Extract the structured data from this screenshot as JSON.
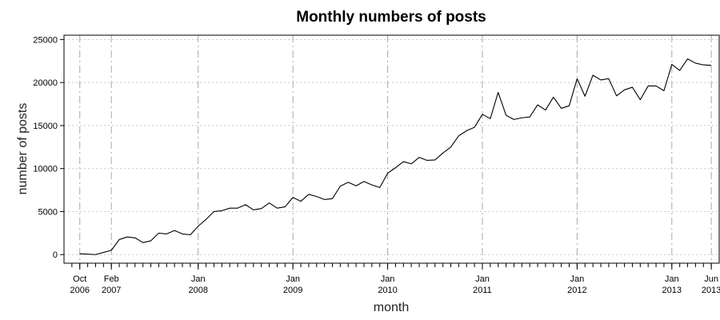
{
  "chart_data": {
    "type": "line",
    "title": "Monthly numbers of posts",
    "xlabel": "month",
    "ylabel": "number of posts",
    "ylim": [
      -1000,
      25500
    ],
    "y_ticks": [
      0,
      5000,
      10000,
      15000,
      20000,
      25000
    ],
    "x_range": [
      "2006-08",
      "2013-07"
    ],
    "x_tick_labels": [
      {
        "date": "2006-10",
        "line1": "Oct",
        "line2": "2006"
      },
      {
        "date": "2007-02",
        "line1": "Feb",
        "line2": "2007"
      },
      {
        "date": "2008-01",
        "line1": "Jan",
        "line2": "2008"
      },
      {
        "date": "2009-01",
        "line1": "Jan",
        "line2": "2009"
      },
      {
        "date": "2010-01",
        "line1": "Jan",
        "line2": "2010"
      },
      {
        "date": "2011-01",
        "line1": "Jan",
        "line2": "2011"
      },
      {
        "date": "2012-01",
        "line1": "Jan",
        "line2": "2012"
      },
      {
        "date": "2013-01",
        "line1": "Jan",
        "line2": "2013"
      },
      {
        "date": "2013-06",
        "line1": "Jun",
        "line2": "2013"
      }
    ],
    "grid": {
      "horizontal": true,
      "vertical": true
    },
    "legend": "none",
    "line_color": "#000000",
    "series": [
      {
        "x": [
          "2006-10",
          "2006-11",
          "2006-12",
          "2007-01",
          "2007-02",
          "2007-03",
          "2007-04",
          "2007-05",
          "2007-06",
          "2007-07",
          "2007-08",
          "2007-09",
          "2007-10",
          "2007-11",
          "2007-12",
          "2008-01",
          "2008-02",
          "2008-03",
          "2008-04",
          "2008-05",
          "2008-06",
          "2008-07",
          "2008-08",
          "2008-09",
          "2008-10",
          "2008-11",
          "2008-12",
          "2009-01",
          "2009-02",
          "2009-03",
          "2009-04",
          "2009-05",
          "2009-06",
          "2009-07",
          "2009-08",
          "2009-09",
          "2009-10",
          "2009-11",
          "2009-12",
          "2010-01",
          "2010-02",
          "2010-03",
          "2010-04",
          "2010-05",
          "2010-06",
          "2010-07",
          "2010-08",
          "2010-09",
          "2010-10",
          "2010-11",
          "2010-12",
          "2011-01",
          "2011-02",
          "2011-03",
          "2011-04",
          "2011-05",
          "2011-06",
          "2011-07",
          "2011-08",
          "2011-09",
          "2011-10",
          "2011-11",
          "2011-12",
          "2012-01",
          "2012-02",
          "2012-03",
          "2012-04",
          "2012-05",
          "2012-06",
          "2012-07",
          "2012-08",
          "2012-09",
          "2012-10",
          "2012-11",
          "2012-12",
          "2013-01",
          "2013-02",
          "2013-03",
          "2013-04",
          "2013-05",
          "2013-06"
        ],
        "values": [
          100,
          50,
          0,
          250,
          500,
          1750,
          2050,
          1950,
          1400,
          1600,
          2500,
          2400,
          2800,
          2400,
          2300,
          3300,
          4100,
          5000,
          5100,
          5400,
          5400,
          5800,
          5200,
          5350,
          6000,
          5400,
          5550,
          6650,
          6200,
          7000,
          6750,
          6400,
          6500,
          7950,
          8400,
          8000,
          8500,
          8100,
          7800,
          9450,
          10100,
          10800,
          10550,
          11300,
          10950,
          11000,
          11800,
          12500,
          13800,
          14400,
          14800,
          16300,
          15800,
          18850,
          16200,
          15700,
          15900,
          16000,
          17400,
          16800,
          18300,
          17000,
          17300,
          20450,
          18400,
          20850,
          20300,
          20450,
          18450,
          19150,
          19450,
          18000,
          19600,
          19600,
          19050,
          22100,
          21400,
          22750,
          22250,
          22050,
          22000
        ]
      }
    ]
  }
}
